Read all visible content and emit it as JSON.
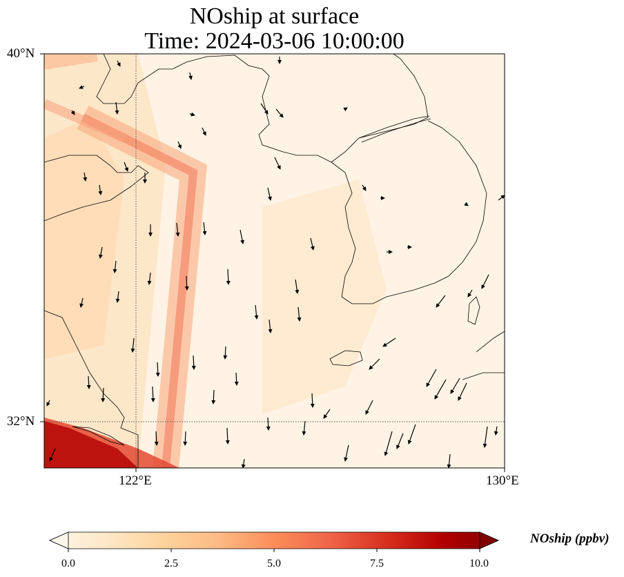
{
  "title_line1": "NOship at surface",
  "title_line2": "Time: 2024-03-06 10:00:00",
  "axes": {
    "lat_ticks": [
      "40°N",
      "32°N"
    ],
    "lon_ticks": [
      "122°E",
      "130°E"
    ]
  },
  "colorbar": {
    "label": "NOship (ppbv)",
    "ticks": [
      "0.0",
      "2.5",
      "5.0",
      "7.5",
      "10.0"
    ],
    "min": 0,
    "max": 10,
    "extend": "both",
    "colormap": "OrRd",
    "colors": [
      "#fff7ec",
      "#fee8c8",
      "#fdd49e",
      "#fdbb84",
      "#fc8d59",
      "#ef6548",
      "#d7301f",
      "#b30000",
      "#7f0000"
    ]
  },
  "map_extent": {
    "lon": [
      120,
      130
    ],
    "lat": [
      31,
      40
    ]
  },
  "gridlines": "dotted",
  "features": [
    "coastlines",
    "wind vectors",
    "shipping lanes"
  ]
}
